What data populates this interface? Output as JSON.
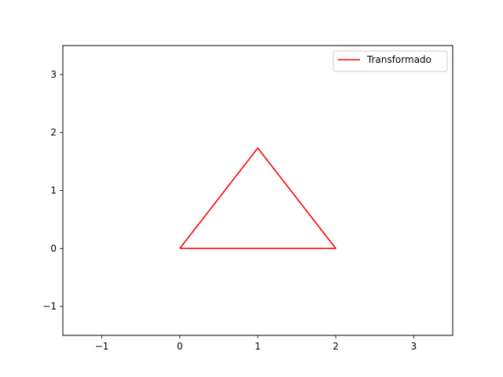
{
  "chart_data": {
    "type": "line",
    "title": "",
    "xlabel": "",
    "ylabel": "",
    "xlim": [
      -1.5,
      3.5
    ],
    "ylim": [
      -1.5,
      3.5
    ],
    "x_ticks": [
      -1,
      0,
      1,
      2,
      3
    ],
    "y_ticks": [
      -1,
      0,
      1,
      2,
      3
    ],
    "x_tick_labels": [
      "−1",
      "0",
      "1",
      "2",
      "3"
    ],
    "y_tick_labels": [
      "−1",
      "0",
      "1",
      "2",
      "3"
    ],
    "grid": false,
    "legend_position": "top-right",
    "series": [
      {
        "name": "Transformado",
        "color": "#ff0000",
        "x": [
          0,
          2,
          1,
          0
        ],
        "y": [
          0,
          0,
          1.732,
          0
        ]
      }
    ]
  }
}
